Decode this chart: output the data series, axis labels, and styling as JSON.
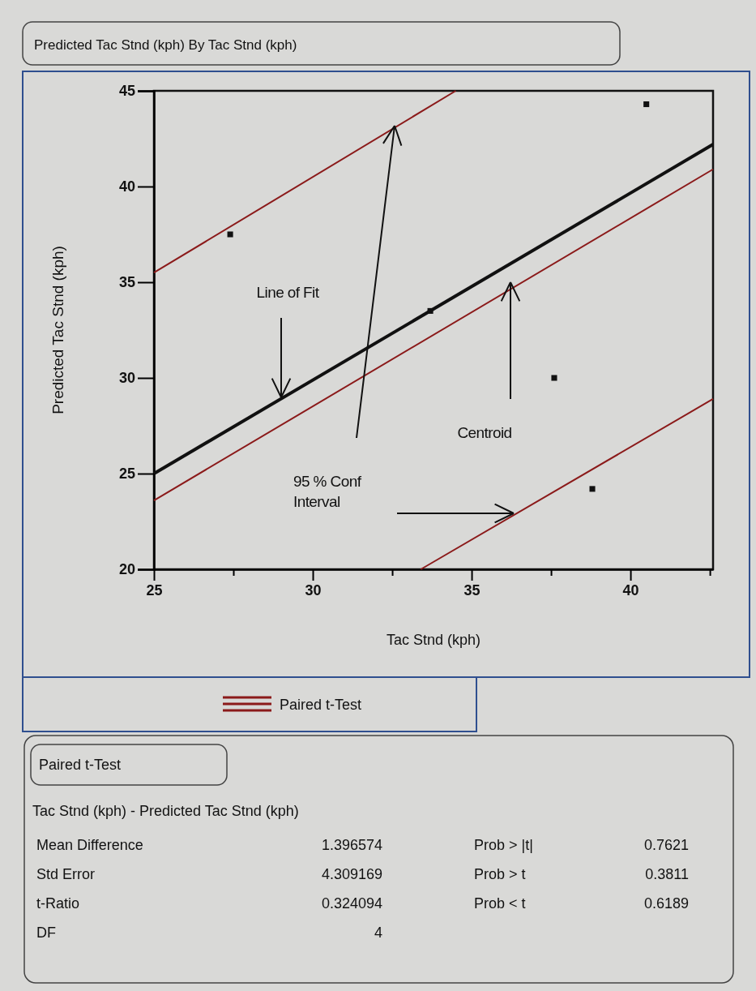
{
  "chart_data": {
    "type": "scatter",
    "title": "Predicted Tac Stnd (kph) By Tac Stnd (kph)",
    "xlabel": "Tac Stnd (kph)",
    "ylabel": "Predicted Tac Stnd (kph)",
    "xlim": [
      25,
      42.6
    ],
    "ylim": [
      20,
      45
    ],
    "xticks": [
      25,
      {
        "value": 27.5,
        "label": null
      },
      30,
      {
        "value": 32.5,
        "label": null
      },
      35,
      {
        "value": 37.5,
        "label": null
      },
      40,
      {
        "value": 42.5,
        "label": null
      }
    ],
    "yticks": [
      20,
      25,
      30,
      35,
      40,
      45
    ],
    "grid": false,
    "legend": "bottom",
    "series": [
      {
        "marker": "square",
        "color": "#111111",
        "x": [
          27.4,
          33.7,
          37.6,
          38.8,
          40.5
        ],
        "values": [
          37.5,
          33.5,
          30.0,
          24.2,
          44.3
        ]
      },
      {
        "type": "line",
        "color": "#111111",
        "line_style": "solid",
        "x": [
          25,
          42.6
        ],
        "values": [
          25.0,
          42.2
        ]
      },
      {
        "type": "line",
        "name": "Paired t-Test",
        "color": "#8b1a1a",
        "line_style": "solid",
        "x": [
          25,
          34.5,
          null,
          25,
          42.6,
          null,
          33.4,
          42.6
        ],
        "values": [
          35.5,
          45,
          null,
          23.6,
          40.9,
          null,
          20,
          28.9
        ]
      }
    ],
    "annotations": [
      "Line of Fit",
      "95 % Conf Interval",
      "Centroid",
      "Paired t-Test",
      "Tac Stnd (kph) - Predicted Tac Stnd (kph)",
      "Mean Difference",
      "1.396574",
      "Prob > |t|",
      "0.7621",
      "Std Error",
      "4.309169",
      "Prob > t",
      "0.3811",
      "t-Ratio",
      "0.324094",
      "Prob < t",
      "0.6189",
      "DF",
      "4"
    ]
  }
}
